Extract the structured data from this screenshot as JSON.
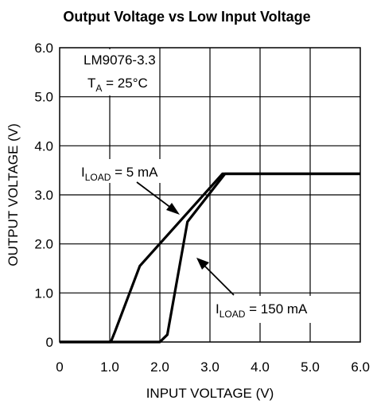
{
  "chart_data": {
    "type": "line",
    "title": "Output Voltage vs Low Input Voltage",
    "xlabel": "INPUT VOLTAGE (V)",
    "ylabel": "OUTPUT VOLTAGE (V)",
    "xlim": [
      0,
      6
    ],
    "ylim": [
      0,
      6
    ],
    "x_ticks": [
      0,
      1,
      2,
      3,
      4,
      5,
      6
    ],
    "y_ticks": [
      0,
      1,
      2,
      3,
      4,
      5,
      6
    ],
    "x_tick_labels": [
      "0",
      "1.0",
      "2.0",
      "3.0",
      "4.0",
      "5.0",
      "6.0"
    ],
    "y_tick_labels": [
      "0",
      "1.0",
      "2.0",
      "3.0",
      "4.0",
      "5.0",
      "6.0"
    ],
    "grid": true,
    "annotations": {
      "device": "LM9076-3.3",
      "ta_main": "T",
      "ta_sub": "A",
      "ta_rest": " = 25°C",
      "label1_main": "I",
      "label1_sub": "LOAD",
      "label1_rest": " = 5 mA",
      "label2_main": "I",
      "label2_sub": "LOAD",
      "label2_rest": " = 150 mA"
    },
    "series": [
      {
        "points": [
          [
            0,
            0
          ],
          [
            1.02,
            0
          ],
          [
            1.1,
            0.2
          ],
          [
            1.6,
            1.55
          ],
          [
            3.25,
            3.43
          ],
          [
            6,
            3.43
          ]
        ]
      },
      {
        "points": [
          [
            0,
            0
          ],
          [
            2.0,
            0
          ],
          [
            2.15,
            0.15
          ],
          [
            2.55,
            2.45
          ],
          [
            3.3,
            3.43
          ],
          [
            6,
            3.43
          ]
        ]
      }
    ]
  }
}
